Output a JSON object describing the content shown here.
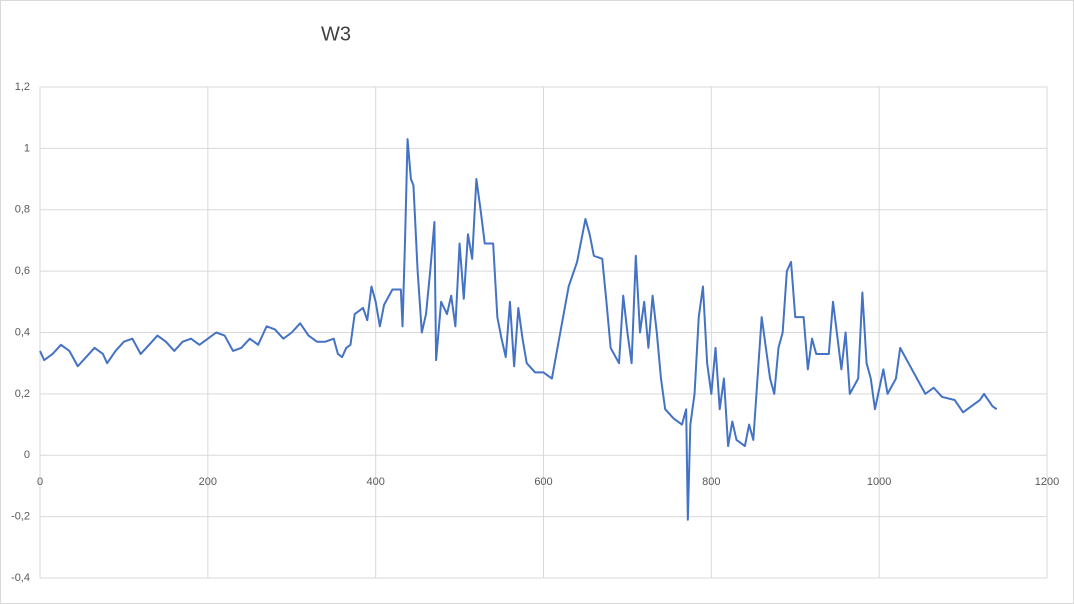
{
  "chart_data": {
    "type": "line",
    "title": "W3",
    "x": [
      0,
      5,
      15,
      25,
      35,
      45,
      55,
      65,
      75,
      80,
      90,
      100,
      110,
      120,
      130,
      140,
      150,
      160,
      170,
      180,
      190,
      200,
      210,
      220,
      230,
      240,
      250,
      260,
      270,
      280,
      290,
      300,
      310,
      320,
      330,
      340,
      350,
      355,
      360,
      365,
      370,
      375,
      385,
      390,
      395,
      400,
      405,
      410,
      420,
      430,
      432,
      435,
      438,
      442,
      445,
      450,
      455,
      460,
      465,
      470,
      472,
      478,
      485,
      490,
      495,
      500,
      505,
      510,
      515,
      520,
      525,
      530,
      540,
      545,
      550,
      555,
      560,
      565,
      570,
      575,
      580,
      590,
      600,
      610,
      620,
      630,
      640,
      650,
      655,
      660,
      670,
      675,
      680,
      690,
      695,
      700,
      705,
      710,
      715,
      720,
      725,
      730,
      735,
      740,
      745,
      755,
      765,
      770,
      772,
      775,
      780,
      785,
      790,
      795,
      800,
      805,
      810,
      815,
      820,
      825,
      830,
      840,
      845,
      850,
      855,
      860,
      865,
      870,
      875,
      880,
      885,
      890,
      895,
      900,
      910,
      915,
      920,
      925,
      940,
      945,
      955,
      960,
      965,
      975,
      980,
      985,
      990,
      995,
      1005,
      1010,
      1020,
      1025,
      1035,
      1045,
      1055,
      1065,
      1075,
      1090,
      1100,
      1110,
      1120,
      1125,
      1135,
      1140
    ],
    "series": [
      {
        "name": "W3",
        "color": "#4472c4",
        "values": [
          0.34,
          0.31,
          0.33,
          0.36,
          0.34,
          0.29,
          0.32,
          0.35,
          0.33,
          0.3,
          0.34,
          0.37,
          0.38,
          0.33,
          0.36,
          0.39,
          0.37,
          0.34,
          0.37,
          0.38,
          0.36,
          0.38,
          0.4,
          0.39,
          0.34,
          0.35,
          0.38,
          0.36,
          0.42,
          0.41,
          0.38,
          0.4,
          0.43,
          0.39,
          0.37,
          0.37,
          0.38,
          0.33,
          0.32,
          0.35,
          0.36,
          0.46,
          0.48,
          0.44,
          0.55,
          0.5,
          0.42,
          0.49,
          0.54,
          0.54,
          0.42,
          0.7,
          1.03,
          0.9,
          0.88,
          0.6,
          0.4,
          0.46,
          0.6,
          0.76,
          0.31,
          0.5,
          0.46,
          0.52,
          0.42,
          0.69,
          0.51,
          0.72,
          0.64,
          0.9,
          0.8,
          0.69,
          0.69,
          0.45,
          0.38,
          0.32,
          0.5,
          0.29,
          0.48,
          0.38,
          0.3,
          0.27,
          0.27,
          0.25,
          0.4,
          0.55,
          0.63,
          0.77,
          0.72,
          0.65,
          0.64,
          0.5,
          0.35,
          0.3,
          0.52,
          0.4,
          0.3,
          0.65,
          0.4,
          0.5,
          0.35,
          0.52,
          0.4,
          0.25,
          0.15,
          0.12,
          0.1,
          0.15,
          -0.21,
          0.1,
          0.2,
          0.45,
          0.55,
          0.3,
          0.2,
          0.35,
          0.15,
          0.25,
          0.03,
          0.11,
          0.05,
          0.03,
          0.1,
          0.05,
          0.25,
          0.45,
          0.35,
          0.25,
          0.2,
          0.35,
          0.4,
          0.6,
          0.63,
          0.45,
          0.45,
          0.28,
          0.38,
          0.33,
          0.33,
          0.5,
          0.28,
          0.4,
          0.2,
          0.25,
          0.53,
          0.3,
          0.25,
          0.15,
          0.28,
          0.2,
          0.25,
          0.35,
          0.3,
          0.25,
          0.2,
          0.22,
          0.19,
          0.18,
          0.14,
          0.16,
          0.18,
          0.2,
          0.16,
          0.15
        ]
      }
    ],
    "xlim": [
      0,
      1200
    ],
    "xticks": [
      0,
      200,
      400,
      600,
      800,
      1000,
      1200
    ],
    "ylim": [
      -0.4,
      1.2
    ],
    "yticks": [
      {
        "value": -0.4,
        "label": "-0,4"
      },
      {
        "value": -0.2,
        "label": "-0,2"
      },
      0,
      {
        "value": 0.2,
        "label": "0,2"
      },
      {
        "value": 0.4,
        "label": "0,4"
      },
      {
        "value": 0.6,
        "label": "0,6"
      },
      {
        "value": 0.8,
        "label": "0,8"
      },
      1,
      {
        "value": 1.2,
        "label": "1,2"
      }
    ],
    "grid": true
  }
}
